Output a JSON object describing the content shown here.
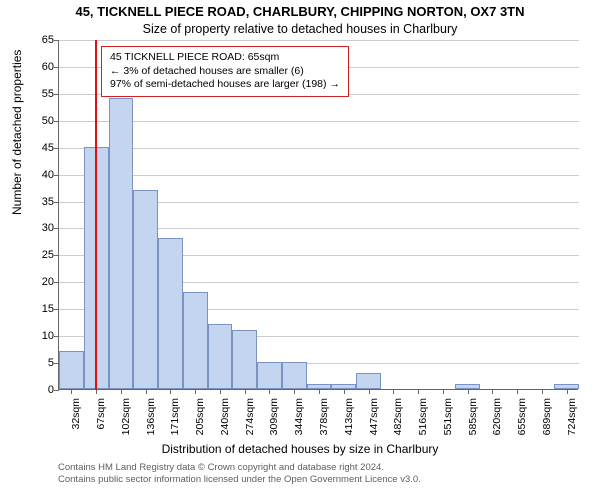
{
  "title_line1": "45, TICKNELL PIECE ROAD, CHARLBURY, CHIPPING NORTON, OX7 3TN",
  "title_line2": "Size of property relative to detached houses in Charlbury",
  "y_axis_label": "Number of detached properties",
  "x_axis_label": "Distribution of detached houses by size in Charlbury",
  "chart": {
    "type": "histogram",
    "ylim": [
      0,
      65
    ],
    "ytick_step": 5,
    "bar_fill": "#c4d5f0",
    "bar_border": "#7a93c2",
    "grid_color": "#cccccc",
    "background_color": "#ffffff",
    "ref_line_value": 65,
    "ref_line_color": "#e01010",
    "categories": [
      "32sqm",
      "67sqm",
      "102sqm",
      "136sqm",
      "171sqm",
      "205sqm",
      "240sqm",
      "274sqm",
      "309sqm",
      "344sqm",
      "378sqm",
      "413sqm",
      "447sqm",
      "482sqm",
      "516sqm",
      "551sqm",
      "585sqm",
      "620sqm",
      "655sqm",
      "689sqm",
      "724sqm"
    ],
    "values": [
      7,
      45,
      54,
      37,
      28,
      18,
      12,
      11,
      5,
      5,
      1,
      1,
      3,
      0,
      0,
      0,
      1,
      0,
      0,
      0,
      1
    ]
  },
  "annotation": {
    "line1": "45 TICKNELL PIECE ROAD: 65sqm",
    "line2": "← 3% of detached houses are smaller (6)",
    "line3": "97% of semi-detached houses are larger (198) →",
    "border_color": "#d02020"
  },
  "footer": {
    "line1": "Contains HM Land Registry data © Crown copyright and database right 2024.",
    "line2": "Contains public sector information licensed under the Open Government Licence v3.0."
  }
}
